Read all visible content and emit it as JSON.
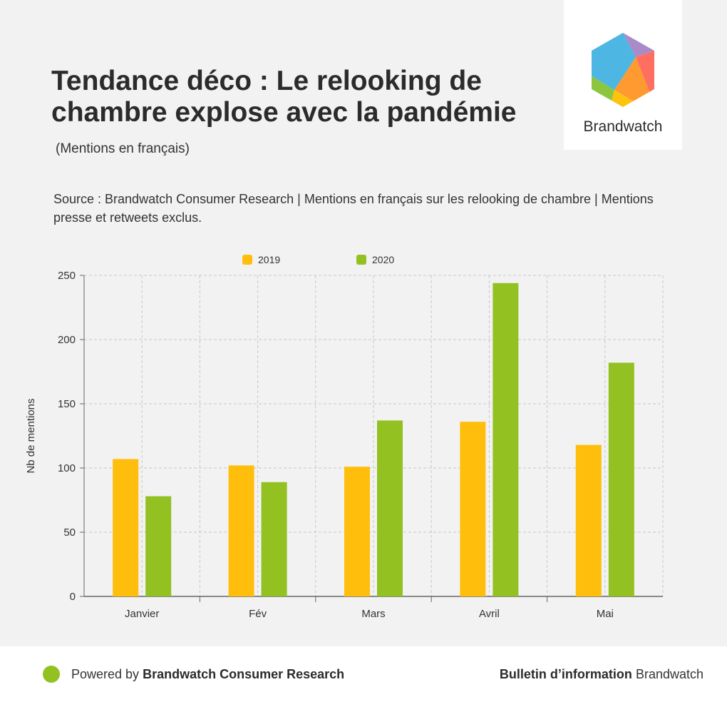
{
  "header": {
    "title": "Tendance déco : Le relooking de chambre explose avec la pandémie",
    "title_sub": "(Mentions en français)",
    "source": "Source : Brandwatch Consumer Research | Mentions en français sur les relooking de chambre | Mentions presse et retweets exclus."
  },
  "logo": {
    "name": "Brandwatch"
  },
  "chart_data": {
    "type": "bar",
    "title": "",
    "xlabel": "",
    "ylabel": "Nb de mentions",
    "ylim": [
      0,
      250
    ],
    "yticks": [
      0,
      50,
      100,
      150,
      200,
      250
    ],
    "categories": [
      "Janvier",
      "Fév",
      "Mars",
      "Avril",
      "Mai"
    ],
    "series": [
      {
        "name": "2019",
        "color": "#ffbe0b",
        "values": [
          107,
          102,
          101,
          136,
          118
        ]
      },
      {
        "name": "2020",
        "color": "#93c122",
        "values": [
          78,
          89,
          137,
          244,
          182
        ]
      }
    ],
    "grid": true,
    "legend": "top-center"
  },
  "footer": {
    "powered_prefix": "Powered by",
    "powered_brand": "Brandwatch Consumer Research",
    "bulletin_bold": "Bulletin d’information",
    "bulletin_brand": "Brandwatch"
  }
}
